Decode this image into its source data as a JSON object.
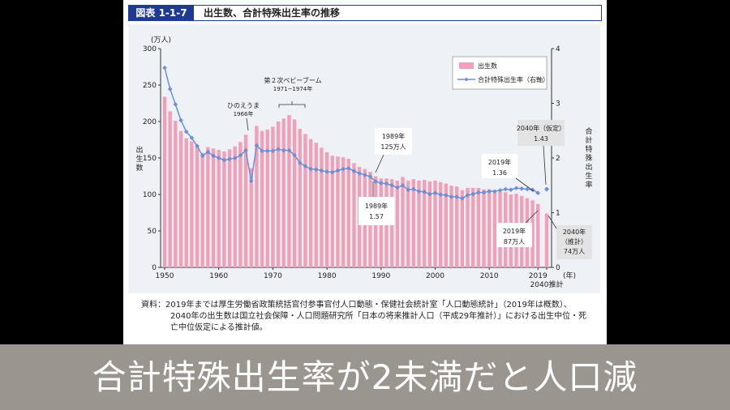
{
  "header": {
    "badge": "図表 1-1-7",
    "title": "出生数、合計特殊出生率の推移"
  },
  "source": {
    "line1": "資料：2019年までは厚生労働省政策統括官付参事官付人口動態・保健社会統計室「人口動態統計」（2019年は概数）、",
    "line2": "2040年の出生数は国立社会保障・人口問題研究所「日本の将来推計人口（平成29年推計）」における出生中位・死",
    "line3": "亡中位仮定による推計値。"
  },
  "caption": "合計特殊出生率が2未満だと人口減",
  "chart_data": {
    "type": "bar+line",
    "x": [
      1950,
      1951,
      1952,
      1953,
      1954,
      1955,
      1956,
      1957,
      1958,
      1959,
      1960,
      1961,
      1962,
      1963,
      1964,
      1965,
      1966,
      1967,
      1968,
      1969,
      1970,
      1971,
      1972,
      1973,
      1974,
      1975,
      1976,
      1977,
      1978,
      1979,
      1980,
      1981,
      1982,
      1983,
      1984,
      1985,
      1986,
      1987,
      1988,
      1989,
      1990,
      1991,
      1992,
      1993,
      1994,
      1995,
      1996,
      1997,
      1998,
      1999,
      2000,
      2001,
      2002,
      2003,
      2004,
      2005,
      2006,
      2007,
      2008,
      2009,
      2010,
      2011,
      2012,
      2013,
      2014,
      2015,
      2016,
      2017,
      2018,
      2019
    ],
    "series": [
      {
        "name": "出生数",
        "type": "bar",
        "axis": "left",
        "values": [
          234,
          214,
          201,
          187,
          177,
          173,
          167,
          157,
          165,
          163,
          161,
          159,
          162,
          166,
          172,
          182,
          136,
          194,
          187,
          189,
          193,
          200,
          204,
          209,
          203,
          190,
          183,
          176,
          171,
          164,
          158,
          153,
          152,
          151,
          149,
          143,
          138,
          135,
          131,
          125,
          122,
          122,
          121,
          119,
          124,
          119,
          121,
          119,
          120,
          118,
          119,
          117,
          115,
          112,
          111,
          106,
          109,
          109,
          109,
          107,
          107,
          105,
          104,
          103,
          100,
          101,
          98,
          95,
          92,
          87
        ],
        "projection": {
          "x": 2040,
          "value": 74
        }
      },
      {
        "name": "合計特殊出生率（右軸）",
        "type": "line",
        "axis": "right",
        "values": [
          3.65,
          3.26,
          2.98,
          2.69,
          2.48,
          2.37,
          2.22,
          2.04,
          2.11,
          2.04,
          2.0,
          1.96,
          1.98,
          2.0,
          2.05,
          2.14,
          1.58,
          2.23,
          2.13,
          2.13,
          2.13,
          2.16,
          2.14,
          2.14,
          2.05,
          1.91,
          1.85,
          1.8,
          1.79,
          1.77,
          1.75,
          1.74,
          1.77,
          1.8,
          1.81,
          1.76,
          1.72,
          1.69,
          1.66,
          1.57,
          1.54,
          1.53,
          1.5,
          1.46,
          1.5,
          1.42,
          1.43,
          1.39,
          1.38,
          1.34,
          1.36,
          1.33,
          1.32,
          1.29,
          1.29,
          1.26,
          1.32,
          1.34,
          1.37,
          1.37,
          1.39,
          1.39,
          1.41,
          1.43,
          1.42,
          1.45,
          1.44,
          1.43,
          1.42,
          1.36
        ],
        "projection": {
          "x": 2040,
          "value": 1.43
        }
      }
    ],
    "left_axis": {
      "label": "出生数",
      "unit": "(万人)",
      "min": 0,
      "max": 300,
      "ticks": [
        0,
        50,
        100,
        150,
        200,
        250,
        300
      ]
    },
    "right_axis": {
      "label": "合計特殊出生率",
      "min": 0,
      "max": 4,
      "ticks": [
        0,
        1,
        2,
        3,
        4
      ]
    },
    "x_ticks": [
      "1950",
      "1960",
      "1970",
      "1980",
      "1990",
      "2000",
      "2010",
      "2019"
    ],
    "x_extra_tick": "2040推計",
    "x_unit": "(年)",
    "legend": {
      "placement": "top-right",
      "bar_label": "出生数",
      "line_label": "合計特殊出生率（右軸）"
    },
    "annotations": {
      "hinoeuma": "ひのえうま",
      "hinoeuma_year": "1966年",
      "babyboom": "第２次ベビーブーム",
      "babyboom_years": "1971~1974年",
      "b1989_year": "1989年",
      "b1989_value": "125万人",
      "r1989_year": "1989年",
      "r1989_value": "1.57",
      "r2019_year": "2019年",
      "r2019_value": "1.36",
      "b2019_year": "2019年",
      "b2019_value": "87万人",
      "r2040_year": "2040年（仮定）",
      "r2040_value": "1.43",
      "b2040_year": "2040年",
      "b2040_kind": "（推計）",
      "b2040_value": "74万人"
    }
  }
}
